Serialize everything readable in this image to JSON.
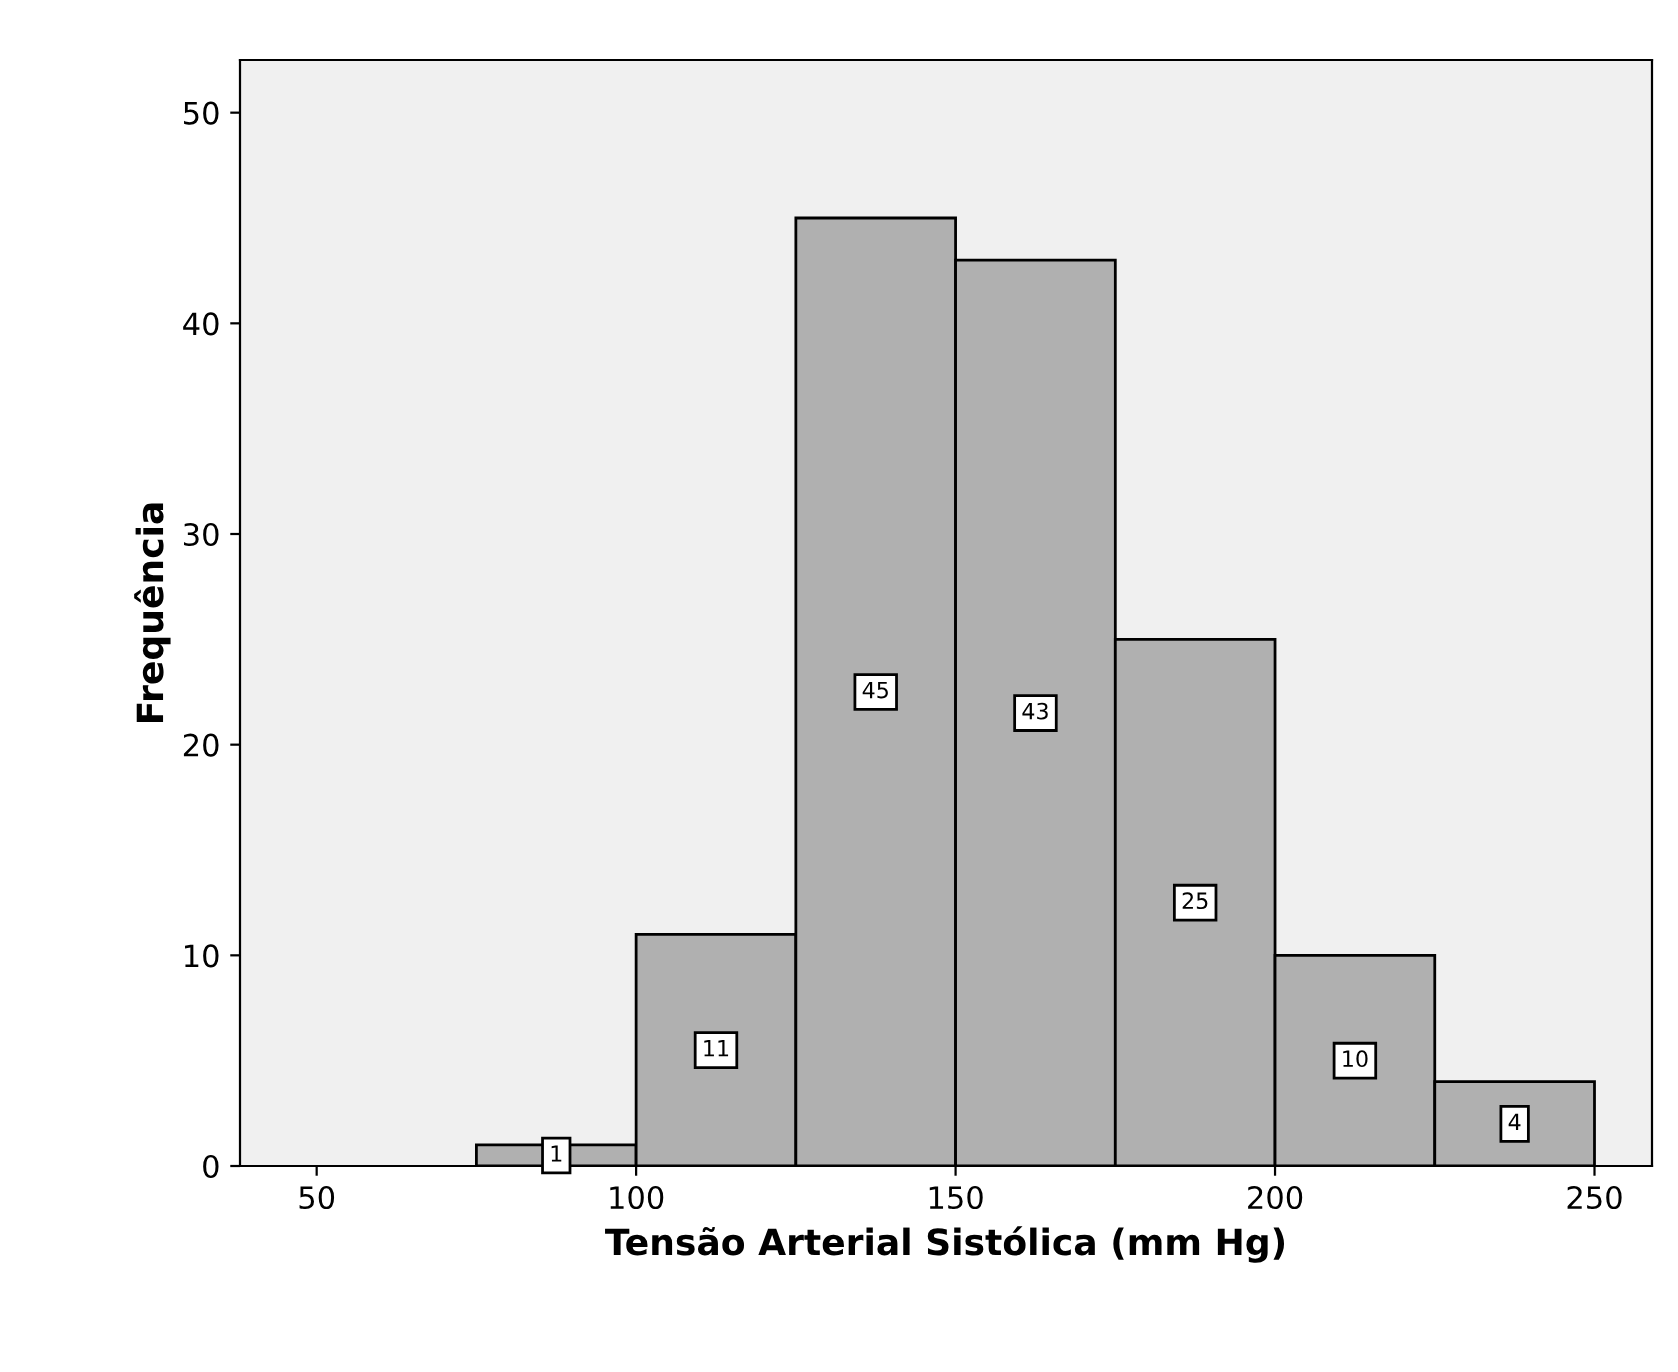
{
  "chart_data": {
    "type": "histogram",
    "xlabel": "Tensão Arterial Sistólica (mm Hg)",
    "ylabel": "Frequência",
    "bins": [
      75,
      100,
      125,
      150,
      175,
      200,
      225,
      250
    ],
    "values": [
      1,
      11,
      45,
      43,
      25,
      10,
      4
    ],
    "color": "#b0b0b0",
    "xlim": [
      38,
      259
    ],
    "xticks": [
      50,
      100,
      150,
      200,
      250
    ],
    "ylim": [
      0,
      52.5
    ],
    "yticks": [
      0,
      10,
      20,
      30,
      40,
      50
    ],
    "data_labels": true,
    "grid": false
  }
}
